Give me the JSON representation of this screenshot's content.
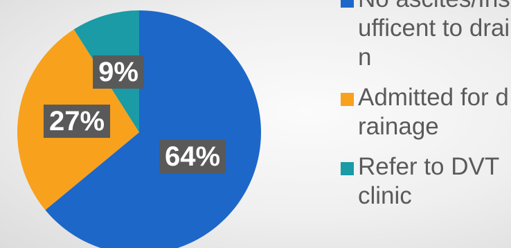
{
  "chart_data": {
    "type": "pie",
    "categories": [
      "No ascites/Insufficent to drain",
      "Admitted for drainage",
      "Refer to DVT clinic"
    ],
    "values": [
      64,
      27,
      9
    ],
    "data_labels": [
      "64%",
      "27%",
      "9%"
    ],
    "colors": [
      "#1d67c8",
      "#f8a11d",
      "#1a9ba6"
    ],
    "legend": "right",
    "start_angle_deg": 0,
    "direction": "clockwise"
  }
}
